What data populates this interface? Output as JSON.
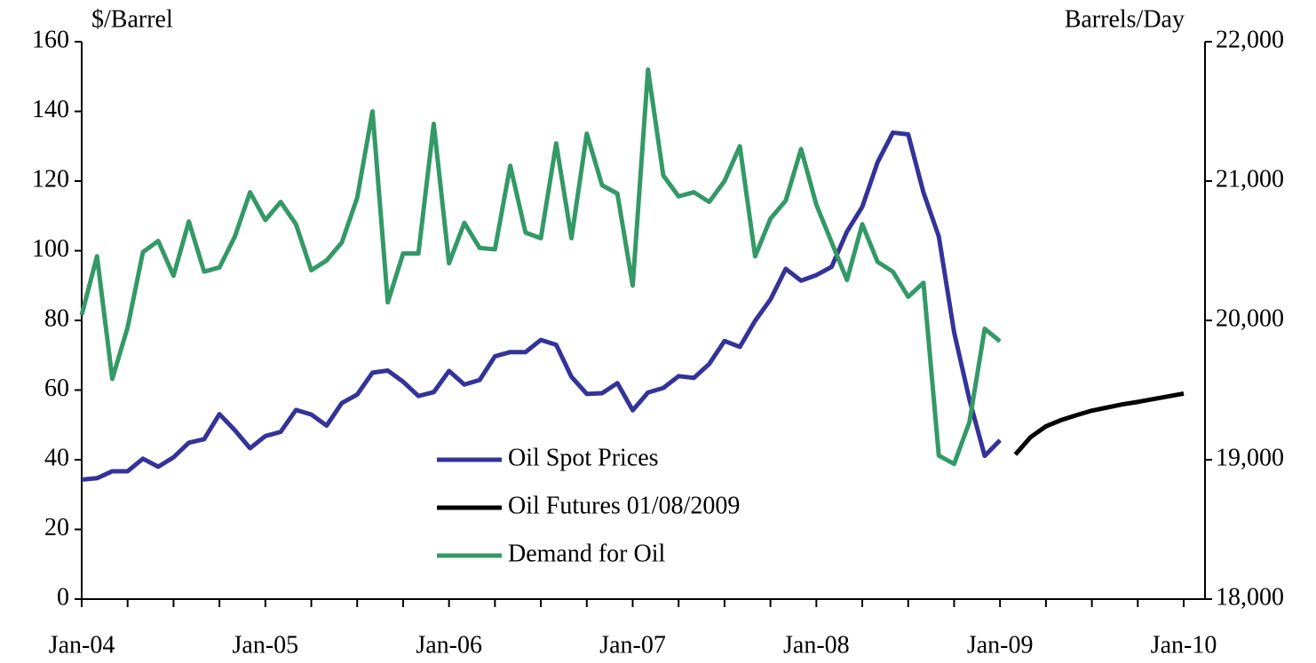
{
  "chart_data": {
    "type": "line",
    "ylabel": "$/Barrel",
    "y2label": "Barrels/Day",
    "categories": [
      "Jan-04",
      null,
      null,
      null,
      null,
      null,
      null,
      null,
      null,
      null,
      null,
      null,
      "Jan-05",
      null,
      null,
      null,
      null,
      null,
      null,
      null,
      null,
      null,
      null,
      null,
      "Jan-06",
      null,
      null,
      null,
      null,
      null,
      null,
      null,
      null,
      null,
      null,
      null,
      "Jan-07",
      null,
      null,
      null,
      null,
      null,
      null,
      null,
      null,
      null,
      null,
      null,
      "Jan-08",
      null,
      null,
      null,
      null,
      null,
      null,
      null,
      null,
      null,
      null,
      null,
      "Jan-09",
      null,
      null,
      null,
      null,
      null,
      null,
      null,
      null,
      null,
      null,
      null,
      "Jan-10"
    ],
    "series": [
      {
        "name": "Oil Spot Prices",
        "color": "#333399",
        "axis": "y",
        "values": [
          34.3,
          34.7,
          36.7,
          36.7,
          40.3,
          38.0,
          40.7,
          44.9,
          45.9,
          53.1,
          48.5,
          43.3,
          46.8,
          48.0,
          54.3,
          53.0,
          49.8,
          56.3,
          58.7,
          65.0,
          65.6,
          62.4,
          58.3,
          59.4,
          65.5,
          61.6,
          62.9,
          69.7,
          70.9,
          70.9,
          74.4,
          73.0,
          63.8,
          58.9,
          59.1,
          62.0,
          54.2,
          59.3,
          60.6,
          64.0,
          63.5,
          67.5,
          74.1,
          72.4,
          79.9,
          86.0,
          94.8,
          91.4,
          93.0,
          95.4,
          105.5,
          112.6,
          125.4,
          133.9,
          133.4,
          116.7,
          104.1,
          76.6,
          57.3,
          41.1,
          45.6,
          null,
          null,
          null,
          null,
          null,
          null,
          null,
          null,
          null,
          null,
          null,
          null
        ]
      },
      {
        "name": "Oil Futures 01/08/2009",
        "color": "#000000",
        "axis": "y",
        "values": [
          null,
          null,
          null,
          null,
          null,
          null,
          null,
          null,
          null,
          null,
          null,
          null,
          null,
          null,
          null,
          null,
          null,
          null,
          null,
          null,
          null,
          null,
          null,
          null,
          null,
          null,
          null,
          null,
          null,
          null,
          null,
          null,
          null,
          null,
          null,
          null,
          null,
          null,
          null,
          null,
          null,
          null,
          null,
          null,
          null,
          null,
          null,
          null,
          null,
          null,
          null,
          null,
          null,
          null,
          null,
          null,
          null,
          null,
          null,
          null,
          null,
          41.5,
          46.5,
          49.6,
          51.4,
          52.8,
          54.1,
          55.0,
          55.9,
          56.6,
          57.4,
          58.2,
          59.0
        ]
      },
      {
        "name": "Demand for Oil",
        "color": "#339966",
        "axis": "y2",
        "values": [
          20040,
          20460,
          19580,
          19950,
          20490,
          20570,
          20320,
          20710,
          20350,
          20380,
          20600,
          20920,
          20720,
          20850,
          20690,
          20360,
          20430,
          20560,
          20880,
          21500,
          20130,
          20480,
          20480,
          21410,
          20410,
          20700,
          20520,
          20510,
          21110,
          20630,
          20590,
          21270,
          20590,
          21340,
          20970,
          20910,
          20250,
          21800,
          21040,
          20890,
          20920,
          20850,
          21000,
          21250,
          20460,
          20730,
          20860,
          21230,
          20830,
          20560,
          20290,
          20690,
          20420,
          20350,
          20170,
          20270,
          19030,
          18970,
          19270,
          19940,
          19850,
          null,
          null,
          null,
          null,
          null,
          null,
          null,
          null,
          null,
          null,
          null,
          null
        ]
      }
    ],
    "ylim": [
      0,
      160
    ],
    "yticks": [
      0,
      20,
      40,
      60,
      80,
      100,
      120,
      140,
      160
    ],
    "y2lim": [
      18000,
      22000
    ],
    "y2ticks": [
      {
        "value": 18000,
        "label": "18,000"
      },
      {
        "value": 19000,
        "label": "19,000"
      },
      {
        "value": 20000,
        "label": "20,000"
      },
      {
        "value": 21000,
        "label": "21,000"
      },
      {
        "value": 22000,
        "label": "22,000"
      }
    ],
    "legend": "center",
    "grid": false
  }
}
